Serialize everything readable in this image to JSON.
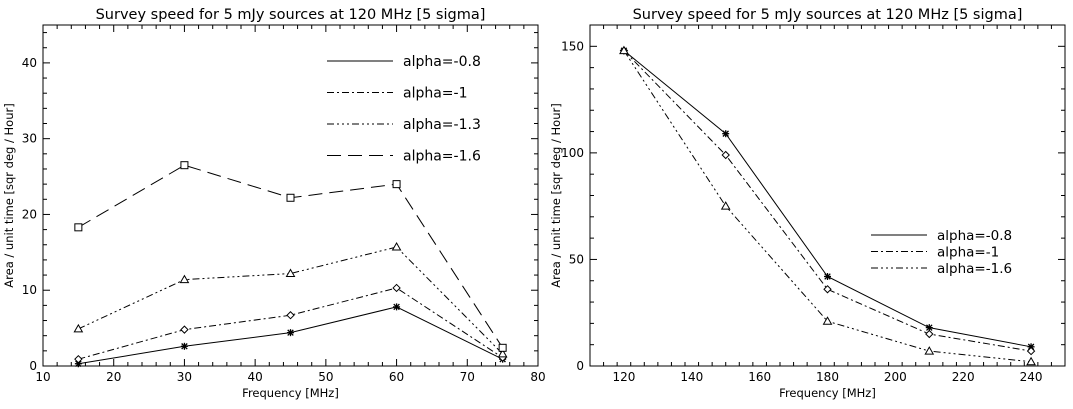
{
  "chart_data": [
    {
      "type": "line",
      "title": "Survey speed for 5 mJy sources  at 120 MHz [5 sigma]",
      "xlabel": "Frequency [MHz]",
      "ylabel": "Area / unit time [sqr deg / Hour]",
      "xlim": [
        10,
        80
      ],
      "ylim": [
        0,
        45
      ],
      "xticks": [
        10,
        20,
        30,
        40,
        50,
        60,
        70,
        80
      ],
      "yticks": [
        0,
        10,
        20,
        30,
        40
      ],
      "legend_position": "top-right",
      "series": [
        {
          "name": "alpha=-0.8",
          "dash": "solid",
          "marker": "asterisk",
          "x": [
            15,
            30,
            45,
            60,
            75
          ],
          "y": [
            0.3,
            2.6,
            4.4,
            7.8,
            0.9
          ]
        },
        {
          "name": "alpha=-1",
          "dash": "dashdot",
          "marker": "diamond",
          "x": [
            15,
            30,
            45,
            60,
            75
          ],
          "y": [
            0.9,
            4.8,
            6.7,
            10.3,
            1.1
          ]
        },
        {
          "name": "alpha=-1.3",
          "dash": "dashdotdotdot",
          "marker": "triangle",
          "x": [
            15,
            30,
            45,
            60,
            75
          ],
          "y": [
            4.9,
            11.4,
            12.2,
            15.7,
            1.6
          ]
        },
        {
          "name": "alpha=-1.6",
          "dash": "longdash",
          "marker": "square",
          "x": [
            15,
            30,
            45,
            60,
            75
          ],
          "y": [
            18.3,
            26.5,
            22.2,
            24.0,
            2.4
          ]
        }
      ]
    },
    {
      "type": "line",
      "title": "Survey speed for 5 mJy sources  at 120 MHz [5 sigma]",
      "xlabel": "Frequency [MHz]",
      "ylabel": "Area / unit time [sqr deg / Hour]",
      "xlim": [
        110,
        250
      ],
      "ylim": [
        0,
        160
      ],
      "xticks": [
        120,
        140,
        160,
        180,
        200,
        220,
        240
      ],
      "yticks": [
        0,
        50,
        100,
        150
      ],
      "legend_position": "center-right",
      "series": [
        {
          "name": "alpha=-0.8",
          "dash": "solid",
          "marker": "asterisk",
          "x": [
            120,
            150,
            180,
            210,
            240
          ],
          "y": [
            148,
            109,
            42,
            18,
            9
          ]
        },
        {
          "name": "alpha=-1",
          "dash": "dashdot",
          "marker": "diamond",
          "x": [
            120,
            150,
            180,
            210,
            240
          ],
          "y": [
            148,
            99,
            36,
            15,
            7
          ]
        },
        {
          "name": "alpha=-1.6",
          "dash": "dashdotdotdot",
          "marker": "triangle",
          "x": [
            120,
            150,
            180,
            210,
            240
          ],
          "y": [
            148,
            75,
            21,
            7,
            2
          ]
        }
      ]
    }
  ]
}
